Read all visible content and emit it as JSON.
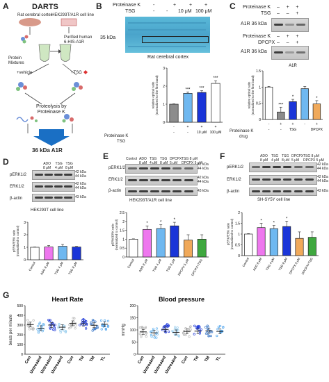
{
  "panelA": {
    "letter": "A",
    "title": "DARTS",
    "source1": "Rat cerebral cortex",
    "source2": "HEK293T/A1R cell line",
    "mix_label": "Protein\nMixtures",
    "purified_label": "Purified human\n6-HIS-A1R",
    "vehicle": "+vehicle",
    "tsg": "+TSG",
    "proteolysis": "Proteolysis by\nProteinase K",
    "band_label": "36 kDa A1R"
  },
  "panelB": {
    "letter": "B",
    "row1": "Proteinase K",
    "row2": "TSG",
    "row1_vals": [
      "-",
      "+",
      "+",
      "+"
    ],
    "row2_vals": [
      "-",
      "-",
      "10 μM",
      "100 μM"
    ],
    "kda": "35 kDa",
    "caption": "Rat cerebral cortex"
  },
  "panelC": {
    "letter": "C",
    "row1": "Proteinase K",
    "row2": "TSG",
    "row3": "Proteinase K",
    "row4": "DPCPX",
    "blot_label": "A1R 36 kDa",
    "chart_title": "A1R",
    "xrow1": "Proteinase K",
    "xrow2": "drug"
  },
  "panelD": {
    "letter": "D",
    "lanes": [
      "ADO\n8 μM",
      "TSG\n4 μM",
      "TSG\n8 μM"
    ],
    "rows": [
      "pERK1/2",
      "ERK1/2",
      "β-actin"
    ],
    "kdas": [
      "42 kDa\n44 kDa",
      "42 kDa\n44 kDa",
      "43 kDa"
    ],
    "caption": "HEK293T cell line"
  },
  "panelE": {
    "letter": "E",
    "lanes": [
      "Control",
      "ADO\n8 μM",
      "TSG\n4 μM",
      "TSG\n8 μM",
      "DPCPX\n5 μM",
      "TSG 8 μM\nDPCPX 5 μM"
    ],
    "rows": [
      "pERK1/2",
      "ERK1/2",
      "β-actin"
    ],
    "kdas": [
      "42 kDa\n44 kDa",
      "42 kDa\n44 kDa",
      "43 kDa"
    ],
    "caption": "HEK293T/A1R cell line"
  },
  "panelF": {
    "letter": "F",
    "lanes": [
      "ADO\n8 μM",
      "TSG\n4 μM",
      "TSG\n8 μM",
      "DPCPX\n5 μM",
      "TSG 8 μM\nDPCPX 5 μM"
    ],
    "rows": [
      "pERK1/2",
      "ERK1/2",
      "β-actin"
    ],
    "kdas": [
      "42 kDa\n44 kDa",
      "42 kDa\n44 kDa",
      "43 kDa"
    ],
    "caption": "SH-SY5Y cell line"
  },
  "panelG": {
    "letter": "G"
  },
  "chart_data": [
    {
      "id": "B",
      "type": "bar",
      "ylabel": "relative optical ratio\n(normalized to the first band)",
      "ylim": [
        0,
        3
      ],
      "yticks": [
        0,
        1,
        2,
        3
      ],
      "values": [
        1.0,
        1.6,
        1.65,
        2.15
      ],
      "errors": [
        0.02,
        0.08,
        0.1,
        0.15
      ],
      "colors": [
        "#8c8c8c",
        "#6fb8f0",
        "#1a35d8",
        "#ffffff"
      ],
      "sig": [
        "",
        "***",
        "***",
        "***"
      ],
      "xrow1": [
        "-",
        "+",
        "+",
        "+"
      ],
      "xrow2": [
        "-",
        "-",
        "10 μM",
        "100 μM"
      ]
    },
    {
      "id": "C",
      "type": "bar",
      "title": "A1R",
      "ylabel": "relative optical ratio\n(normalized to the first band)",
      "ylim": [
        0,
        1.5
      ],
      "yticks": [
        0.0,
        0.5,
        1.0,
        1.5
      ],
      "values": [
        1.0,
        0.23,
        0.55,
        0.95,
        0.48
      ],
      "errors": [
        0.02,
        0.15,
        0.07,
        0.07,
        0.1
      ],
      "colors": [
        "#ffffff",
        "#8c8c8c",
        "#1a35d8",
        "#6fb8f0",
        "#f0a95a"
      ],
      "sig": [
        "",
        "***",
        "*",
        "",
        "*"
      ],
      "xrow1": [
        "-",
        "+",
        "+",
        "-",
        "+"
      ],
      "xrow2": [
        "-",
        "-",
        "TSG",
        "",
        "DPCPX"
      ]
    },
    {
      "id": "D",
      "type": "bar",
      "ylabel": "pERK/ERK ratio\n(normalized to control)",
      "ylim": [
        0,
        3
      ],
      "yticks": [
        0,
        1,
        2,
        3
      ],
      "categories": [
        "Control",
        "ADO 8 μM",
        "TSG 4 μM",
        "TSG 8 μM"
      ],
      "values": [
        1.0,
        1.02,
        1.08,
        1.02
      ],
      "errors": [
        0.02,
        0.12,
        0.15,
        0.05
      ],
      "colors": [
        "#ffffff",
        "#ee77ee",
        "#6fb8f0",
        "#1a35d8"
      ],
      "sig": [
        "",
        "",
        "",
        ""
      ]
    },
    {
      "id": "E",
      "type": "bar",
      "ylabel": "pERK/ERK ratio\n(normalized to control)",
      "ylim": [
        0,
        2.5
      ],
      "yticks": [
        0.0,
        0.5,
        1.0,
        1.5,
        2.0,
        2.5
      ],
      "categories": [
        "Control",
        "ADO 8 μM",
        "TSG 4 μM",
        "TSG 8 μM",
        "DPCPX 5 μM",
        "DPCPX+TSG"
      ],
      "values": [
        1.0,
        1.55,
        1.6,
        1.75,
        0.95,
        1.0
      ],
      "errors": [
        0.02,
        0.2,
        0.22,
        0.2,
        0.3,
        0.25
      ],
      "colors": [
        "#ffffff",
        "#ee77ee",
        "#6fb8f0",
        "#1a35d8",
        "#f0a95a",
        "#3fa83f"
      ],
      "sig": [
        "",
        "*",
        "*",
        "*",
        "",
        ""
      ]
    },
    {
      "id": "F",
      "type": "bar",
      "ylabel": "pERK/ERK ratio\n(normalized to control)",
      "ylim": [
        0,
        2.0
      ],
      "yticks": [
        0.0,
        0.5,
        1.0,
        1.5,
        2.0
      ],
      "categories": [
        "Control",
        "ADO 8 μM",
        "TSG 4 μM",
        "TSG 8 μM",
        "DPCPX 5 μM",
        "DPCPX+TSG"
      ],
      "values": [
        1.0,
        1.3,
        1.25,
        1.35,
        0.8,
        0.85
      ],
      "errors": [
        0.02,
        0.2,
        0.15,
        0.25,
        0.3,
        0.25
      ],
      "colors": [
        "#ffffff",
        "#ee77ee",
        "#6fb8f0",
        "#1a35d8",
        "#f0a95a",
        "#3fa83f"
      ],
      "sig": [
        "",
        "*",
        "*",
        "*",
        "",
        ""
      ]
    },
    {
      "id": "G1",
      "type": "scatter",
      "title": "Heart Rate",
      "ylabel": "beats per minute",
      "ylim": [
        0,
        500
      ],
      "yticks": [
        0,
        100,
        200,
        300,
        400,
        500
      ],
      "categories": [
        "Con",
        "Untreated",
        "Untreated",
        "Untreated",
        "Con",
        "TH",
        "TM",
        "TL"
      ],
      "means": [
        305,
        268,
        300,
        278,
        318,
        312,
        298,
        308
      ],
      "colors": [
        "#bbbbbb",
        "#6fb8f0",
        "#1a35d8",
        "#9ccfee",
        "#bbbbbb",
        "#1a35d8",
        "#3c78c8",
        "#55a8ee"
      ]
    },
    {
      "id": "G2",
      "type": "scatter",
      "title": "Blood pressure",
      "ylabel": "mmHg",
      "ylim": [
        0,
        200
      ],
      "yticks": [
        0,
        50,
        100,
        150,
        200
      ],
      "categories": [
        "Con",
        "Untreated",
        "Untreated",
        "Untreated",
        "Con",
        "TH",
        "TM",
        "TL"
      ],
      "means": [
        92,
        88,
        102,
        90,
        94,
        95,
        96,
        94
      ],
      "colors": [
        "#bbbbbb",
        "#6fb8f0",
        "#1a35d8",
        "#9ccfee",
        "#bbbbbb",
        "#1a35d8",
        "#3c78c8",
        "#55a8ee"
      ]
    }
  ]
}
